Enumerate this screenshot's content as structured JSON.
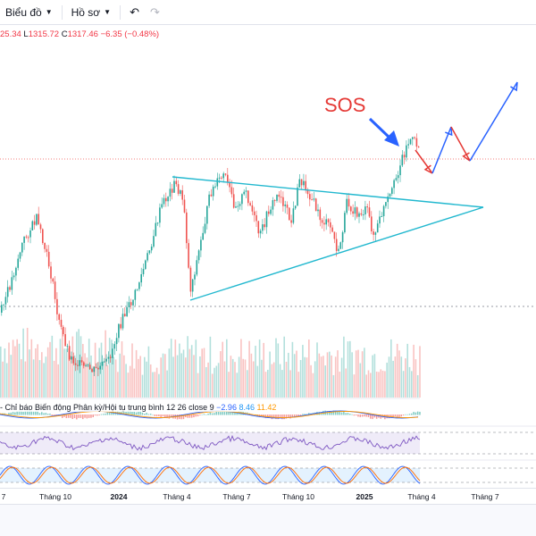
{
  "toolbar": {
    "chart_label": "Biểu đồ",
    "profile_label": "Hồ sơ"
  },
  "ohlc": {
    "open_partial": "25.34",
    "low_key": "L",
    "low": "1315.72",
    "close_key": "C",
    "close": "1317.46",
    "change": "−6.35 (−0.48%)"
  },
  "annotation": {
    "label": "SOS",
    "color": "#e53935"
  },
  "macd": {
    "label": "- Chỉ báo Biến động Phân kỳ/Hội tụ trung bình 12 26 close 9",
    "value1": "−2.96",
    "value2": "8.46",
    "value3": "11.42"
  },
  "time_axis": {
    "ticks": [
      "7",
      "Tháng 10",
      "2024",
      "Tháng 4",
      "Tháng 7",
      "Tháng 10",
      "2025",
      "Tháng 4",
      "Tháng 7"
    ]
  },
  "colors": {
    "up": "#26a69a",
    "down": "#ef5350",
    "trendline": "#22b8cf",
    "projection_up": "#2962ff",
    "projection_down": "#e53935"
  },
  "icons": [
    "chevron-down-icon",
    "undo-icon",
    "redo-icon",
    "arrow-icon"
  ]
}
